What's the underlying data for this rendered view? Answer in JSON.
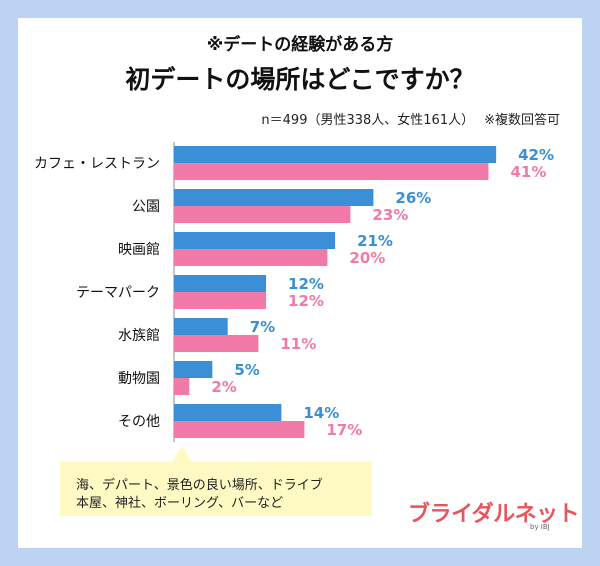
{
  "header": {
    "subtitle": "※デートの経験がある方",
    "title": "初デートの場所はどこですか？",
    "sample": "n＝499（男性338人、女性161人）",
    "note": "※複数回答可"
  },
  "chart_data": {
    "type": "bar",
    "orientation": "horizontal",
    "categories": [
      "カフェ・レストラン",
      "公園",
      "映画館",
      "テーマパーク",
      "水族館",
      "動物園",
      "その他"
    ],
    "series": [
      {
        "color": "#3a8fd6",
        "values": [
          42,
          26,
          21,
          12,
          7,
          5,
          14
        ],
        "labels": [
          "42%",
          "26%",
          "21%",
          "12%",
          "7%",
          "5%",
          "14%"
        ]
      },
      {
        "color": "#f27aa8",
        "values": [
          41,
          23,
          20,
          12,
          11,
          2,
          17
        ],
        "labels": [
          "41%",
          "23%",
          "20%",
          "12%",
          "11%",
          "2%",
          "17%"
        ]
      }
    ],
    "xlim": [
      0,
      45
    ],
    "grid": false,
    "legend": "none"
  },
  "callout": {
    "line1": "海、デパート、景色の良い場所、ドライブ",
    "line2": "本屋、神社、ボーリング、バーなど"
  },
  "logo": {
    "text": "ブライダルネット",
    "sub": "by IBJ",
    "color": "#e8555b"
  }
}
